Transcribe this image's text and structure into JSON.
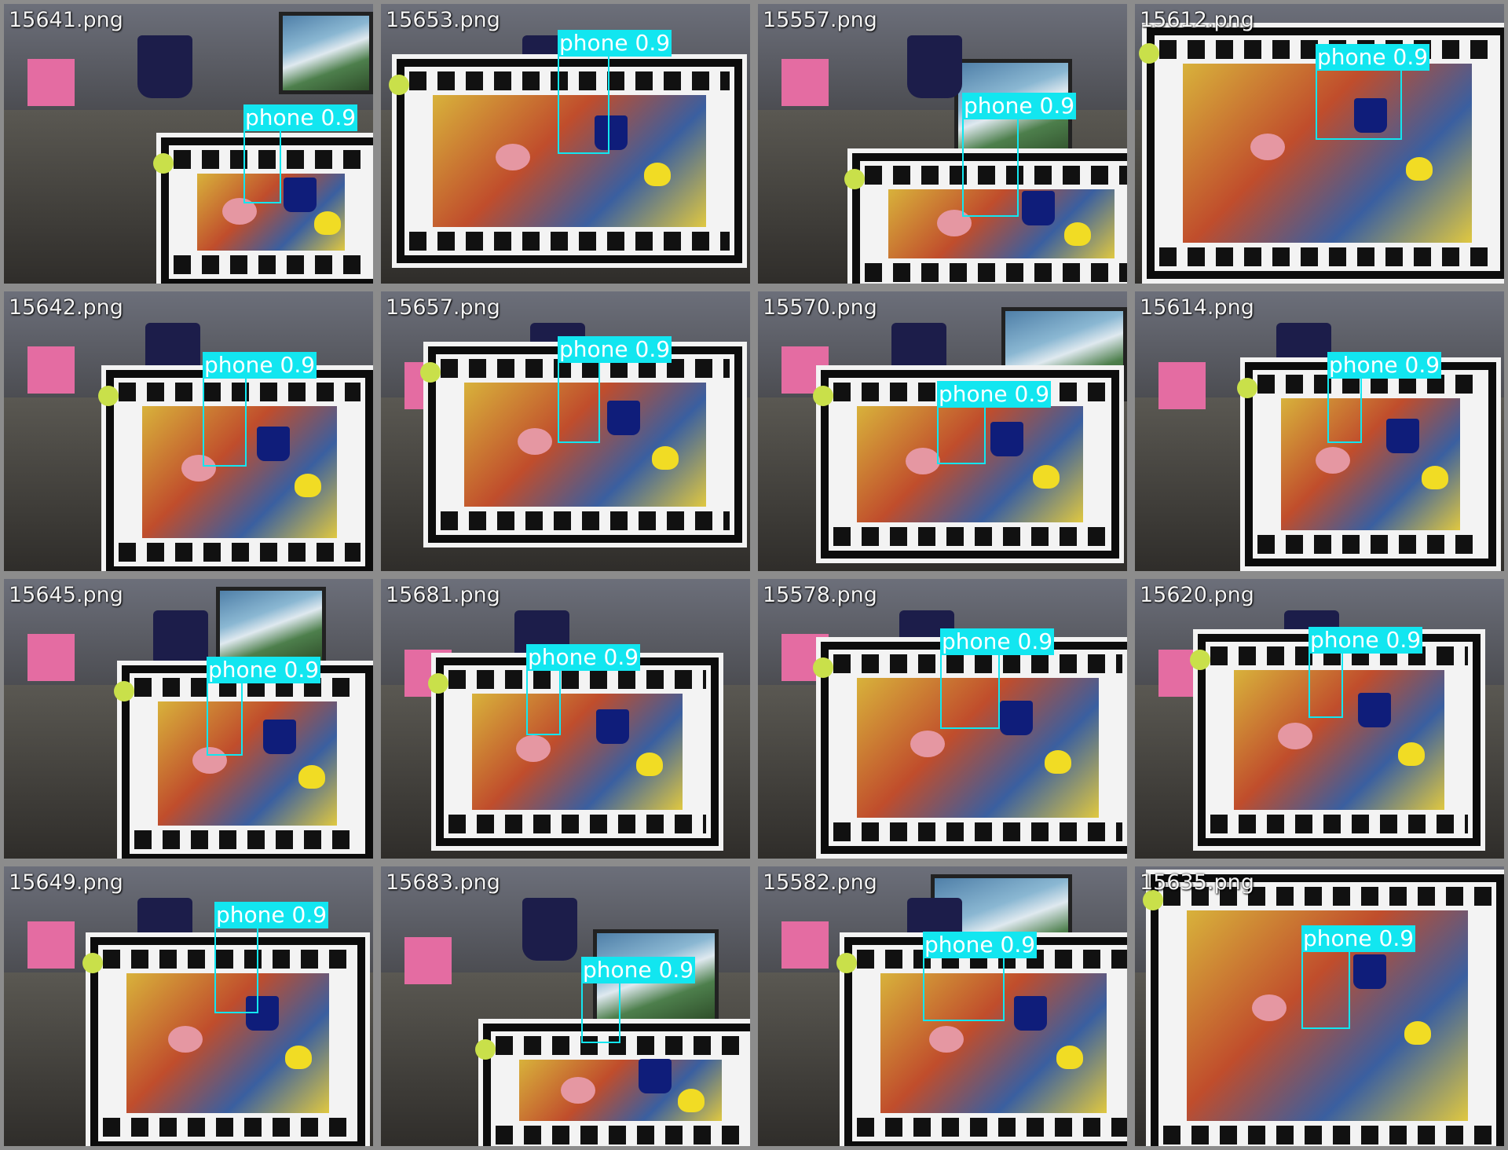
{
  "colors": {
    "box": "#12e6f0",
    "frame": "#8c8c8c",
    "page": "#7a7a7a"
  },
  "tiles": [
    {
      "file": "15641.png",
      "det": {
        "label": "phone 0.9"
      }
    },
    {
      "file": "15653.png",
      "det": {
        "label": "phone 0.9"
      }
    },
    {
      "file": "15557.png",
      "det": {
        "label": "phone 0.9"
      }
    },
    {
      "file": "15612.png",
      "det": {
        "label": "phone 0.9"
      }
    },
    {
      "file": "15642.png",
      "det": {
        "label": "phone 0.9"
      }
    },
    {
      "file": "15657.png",
      "det": {
        "label": "phone 0.9"
      }
    },
    {
      "file": "15570.png",
      "det": {
        "label": "phone 0.9"
      }
    },
    {
      "file": "15614.png",
      "det": {
        "label": "phone 0.9"
      }
    },
    {
      "file": "15645.png",
      "det": {
        "label": "phone 0.9"
      }
    },
    {
      "file": "15681.png",
      "det": {
        "label": "phone 0.9"
      }
    },
    {
      "file": "15578.png",
      "det": {
        "label": "phone 0.9"
      }
    },
    {
      "file": "15620.png",
      "det": {
        "label": "phone 0.9"
      }
    },
    {
      "file": "15649.png",
      "det": {
        "label": "phone 0.9"
      }
    },
    {
      "file": "15683.png",
      "det": {
        "label": "phone 0.9"
      }
    },
    {
      "file": "15582.png",
      "det": {
        "label": "phone 0.9"
      }
    },
    {
      "file": "15635.png",
      "det": {
        "label": "phone 0.9"
      }
    }
  ]
}
